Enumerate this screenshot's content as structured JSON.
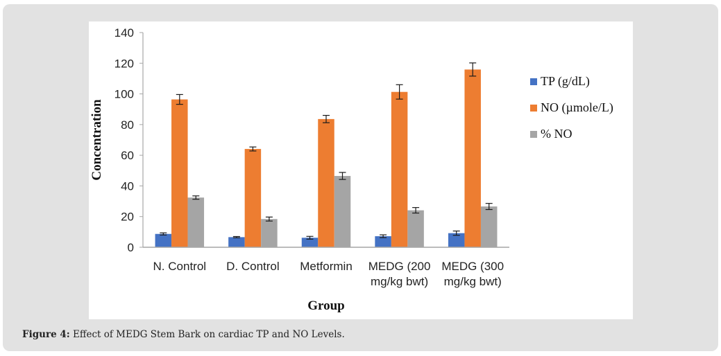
{
  "caption": {
    "label": "Figure 4:",
    "text": " Effect of MEDG Stem Bark on cardiac TP and NO Levels."
  },
  "chart_data": {
    "type": "bar",
    "title": "",
    "xlabel": "Group",
    "ylabel": "Concentration",
    "ylim": [
      0,
      140
    ],
    "yticks": [
      0,
      20,
      40,
      60,
      80,
      100,
      120,
      140
    ],
    "grid": false,
    "legend_position": "right",
    "categories": [
      [
        "N. Control"
      ],
      [
        "D. Control"
      ],
      [
        "Metformin"
      ],
      [
        "MEDG (200",
        "mg/kg bwt)"
      ],
      [
        "MEDG (300",
        "mg/kg bwt)"
      ]
    ],
    "series": [
      {
        "name": "TP (g/dL)",
        "color": "#4472c4",
        "values": [
          8.7,
          6.6,
          6.2,
          7.2,
          9.2
        ],
        "errors": [
          0.7,
          0.4,
          0.9,
          0.9,
          1.4
        ]
      },
      {
        "name": "NO (µmole/L)",
        "color": "#ed7d31",
        "values": [
          96.4,
          64.1,
          83.6,
          101.3,
          115.9
        ],
        "errors": [
          3.2,
          1.3,
          2.4,
          4.7,
          4.3
        ]
      },
      {
        "name": "% NO",
        "color": "#a5a5a5",
        "values": [
          32.4,
          18.4,
          46.5,
          24.1,
          26.6
        ],
        "errors": [
          1.1,
          1.3,
          2.3,
          1.8,
          2.0
        ]
      }
    ]
  }
}
